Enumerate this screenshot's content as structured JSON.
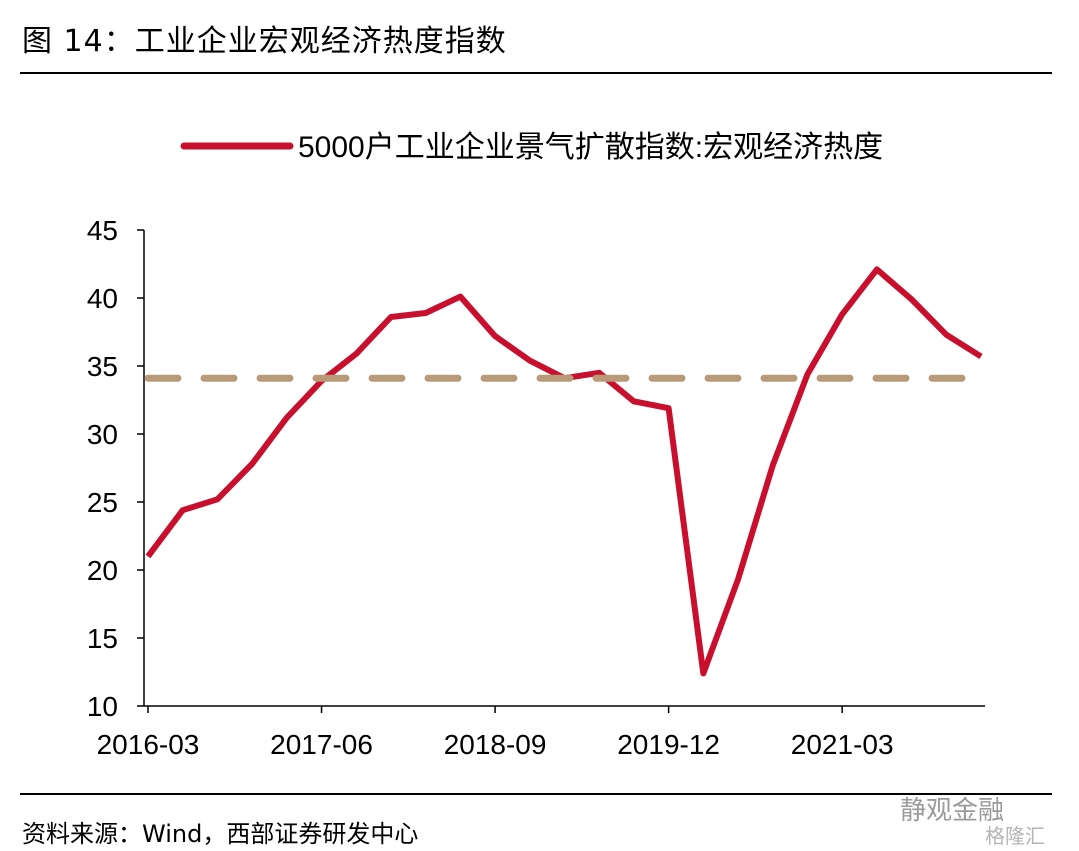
{
  "figure": {
    "title": "图 14：工业企业宏观经济热度指数",
    "source": "资料来源：Wind，西部证券研发中心"
  },
  "watermark": {
    "line1": "静观金融",
    "line2": "格隆汇"
  },
  "colors": {
    "series": "#c8102e",
    "threshold": "#b89a78",
    "axis": "#000000"
  },
  "chart_data": {
    "type": "line",
    "title": "",
    "xlabel": "",
    "ylabel": "",
    "ylim": [
      10,
      45
    ],
    "yticks": [
      10,
      15,
      20,
      25,
      30,
      35,
      40,
      45
    ],
    "xtick_labels": [
      "2016-03",
      "2017-06",
      "2018-09",
      "2019-12",
      "2021-03"
    ],
    "grid": false,
    "legend_position": "top",
    "x": [
      "2016-03",
      "2016-06",
      "2016-09",
      "2016-12",
      "2017-03",
      "2017-06",
      "2017-09",
      "2017-12",
      "2018-03",
      "2018-06",
      "2018-09",
      "2018-12",
      "2019-03",
      "2019-06",
      "2019-09",
      "2019-12",
      "2020-03",
      "2020-06",
      "2020-09",
      "2020-12",
      "2021-03",
      "2021-06",
      "2021-09",
      "2021-12",
      "2022-03"
    ],
    "series": [
      {
        "name": "5000户工业企业景气扩散指数:宏观经济热度",
        "style": "solid",
        "values": [
          21.0,
          24.4,
          25.2,
          27.8,
          31.2,
          33.9,
          35.9,
          38.6,
          38.9,
          40.1,
          37.2,
          35.4,
          34.1,
          34.5,
          32.4,
          31.9,
          12.4,
          19.3,
          27.7,
          34.4,
          38.8,
          42.1,
          39.9,
          37.3,
          35.7
        ]
      },
      {
        "style": "dashed",
        "values": [
          34.1,
          34.1,
          34.1,
          34.1,
          34.1,
          34.1,
          34.1,
          34.1,
          34.1,
          34.1,
          34.1,
          34.1,
          34.1,
          34.1,
          34.1,
          34.1,
          34.1,
          34.1,
          34.1,
          34.1,
          34.1,
          34.1,
          34.1,
          34.1,
          34.1
        ]
      }
    ]
  }
}
